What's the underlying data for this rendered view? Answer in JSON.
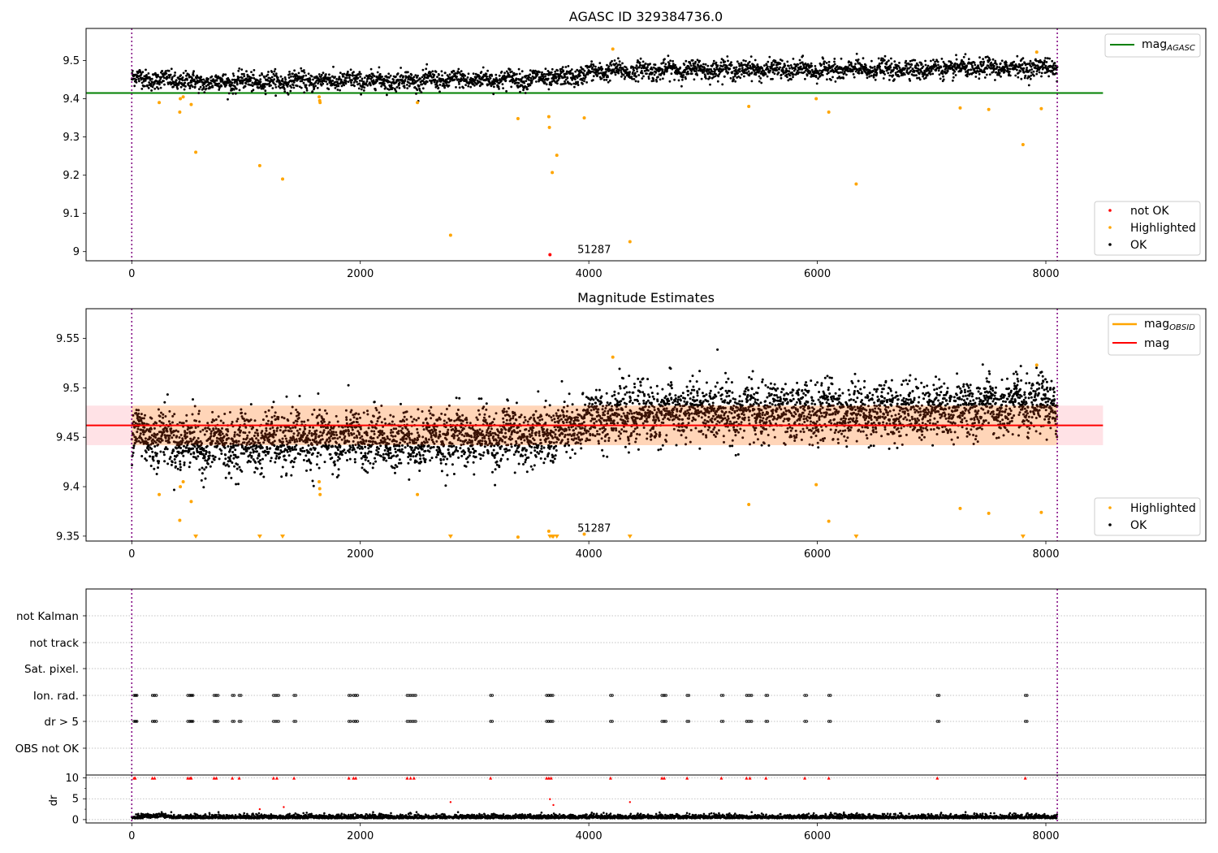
{
  "chart_data": [
    {
      "type": "scatter",
      "title": "AGASC ID 329384736.0",
      "xlim": [
        -400,
        9400
      ],
      "ylim": [
        8.976,
        9.584
      ],
      "xticks": [
        0,
        2000,
        4000,
        6000,
        8000
      ],
      "yticks": [
        9.0,
        9.1,
        9.2,
        9.3,
        9.4,
        9.5
      ],
      "ytick_labels": [
        "9.0",
        "9.1",
        "9.2",
        "9.3",
        "9.4",
        "9.5"
      ],
      "vlines": [
        0,
        8100
      ],
      "hline": {
        "name": "mag_AGASC",
        "value": 9.415,
        "x_range": [
          -400,
          8500
        ],
        "color": "#008000"
      },
      "ok_series": {
        "name": "OK",
        "color": "#000000",
        "x_range": [
          0,
          8100
        ],
        "mean_trend": [
          [
            0,
            9.455
          ],
          [
            600,
            9.443
          ],
          [
            1500,
            9.447
          ],
          [
            2500,
            9.448
          ],
          [
            3500,
            9.452
          ],
          [
            3800,
            9.455
          ],
          [
            4100,
            9.472
          ],
          [
            5000,
            9.477
          ],
          [
            6000,
            9.475
          ],
          [
            7000,
            9.478
          ],
          [
            8100,
            9.482
          ]
        ],
        "scatter_sd": 0.012
      },
      "highlighted": {
        "name": "Highlighted",
        "color": "#ffa500",
        "points": [
          [
            240,
            9.39
          ],
          [
            420,
            9.365
          ],
          [
            425,
            9.4
          ],
          [
            450,
            9.405
          ],
          [
            520,
            9.385
          ],
          [
            560,
            9.26
          ],
          [
            1120,
            9.225
          ],
          [
            1320,
            9.19
          ],
          [
            1640,
            9.405
          ],
          [
            1645,
            9.395
          ],
          [
            1648,
            9.39
          ],
          [
            2500,
            9.39
          ],
          [
            2790,
            9.043
          ],
          [
            3380,
            9.348
          ],
          [
            3650,
            9.353
          ],
          [
            3655,
            9.325
          ],
          [
            3680,
            9.207
          ],
          [
            3720,
            9.252
          ],
          [
            3960,
            9.35
          ],
          [
            4210,
            9.53
          ],
          [
            4360,
            9.026
          ],
          [
            5400,
            9.38
          ],
          [
            5990,
            9.4
          ],
          [
            6100,
            9.365
          ],
          [
            6340,
            9.177
          ],
          [
            7250,
            9.376
          ],
          [
            7500,
            9.372
          ],
          [
            7800,
            9.28
          ],
          [
            7920,
            9.522
          ],
          [
            7960,
            9.374
          ]
        ]
      },
      "not_ok": {
        "name": "not OK",
        "color": "#ff0000",
        "points": [
          [
            3660,
            8.992
          ]
        ]
      },
      "annotation": {
        "text": "51287",
        "x": 3900,
        "y": 9.0
      },
      "legend_top": [
        "mag_AGASC"
      ],
      "legend_bottom": [
        "not OK",
        "Highlighted",
        "OK"
      ],
      "legend_top_loc": "upper right",
      "legend_bottom_loc": "lower right"
    },
    {
      "type": "scatter",
      "title": "Magnitude Estimates",
      "xlim": [
        -400,
        9400
      ],
      "ylim": [
        9.345,
        9.58
      ],
      "xticks": [
        0,
        2000,
        4000,
        6000,
        8000
      ],
      "yticks": [
        9.35,
        9.4,
        9.45,
        9.5,
        9.55
      ],
      "ytick_labels": [
        "9.35",
        "9.40",
        "9.45",
        "9.50",
        "9.55"
      ],
      "vlines": [
        0,
        8100
      ],
      "mag": {
        "name": "mag",
        "value": 9.462,
        "color": "#ff0000",
        "band": [
          9.442,
          9.482
        ],
        "x_range": [
          -400,
          8500
        ]
      },
      "mag_obsid": {
        "name": "mag_OBSID",
        "color": "#ffa500"
      },
      "ok_series": {
        "name": "OK",
        "color": "#000000",
        "x_range": [
          0,
          8100
        ],
        "mean_trend": [
          [
            0,
            9.455
          ],
          [
            600,
            9.443
          ],
          [
            1500,
            9.447
          ],
          [
            2500,
            9.448
          ],
          [
            3500,
            9.452
          ],
          [
            3800,
            9.455
          ],
          [
            4100,
            9.472
          ],
          [
            5000,
            9.477
          ],
          [
            6000,
            9.475
          ],
          [
            7000,
            9.478
          ],
          [
            8100,
            9.482
          ]
        ],
        "scatter_sd": 0.014
      },
      "highlighted": {
        "name": "Highlighted",
        "color": "#ffa500",
        "points": [
          [
            240,
            9.392
          ],
          [
            420,
            9.366
          ],
          [
            425,
            9.4
          ],
          [
            450,
            9.405
          ],
          [
            520,
            9.385
          ],
          [
            1640,
            9.405
          ],
          [
            1645,
            9.398
          ],
          [
            1648,
            9.392
          ],
          [
            2500,
            9.392
          ],
          [
            3380,
            9.349
          ],
          [
            3650,
            9.355
          ],
          [
            3960,
            9.352
          ],
          [
            4210,
            9.531
          ],
          [
            5400,
            9.382
          ],
          [
            5990,
            9.402
          ],
          [
            6100,
            9.365
          ],
          [
            7250,
            9.378
          ],
          [
            7500,
            9.373
          ],
          [
            7920,
            9.523
          ],
          [
            7960,
            9.374
          ]
        ]
      },
      "clipped_low": {
        "color": "#ffa500",
        "x": [
          560,
          1120,
          1320,
          2790,
          3660,
          3680,
          3690,
          3720,
          4360,
          6340,
          7800
        ]
      },
      "annotation": {
        "text": "51287",
        "x": 3900,
        "y": 9.356
      },
      "legend_top": [
        "mag_OBSID",
        "mag"
      ],
      "legend_bottom": [
        "Highlighted",
        "OK"
      ],
      "legend_top_loc": "upper right",
      "legend_bottom_loc": "lower right"
    },
    {
      "type": "scatter",
      "title": "",
      "xlim": [
        -400,
        9400
      ],
      "xticks": [
        0,
        2000,
        4000,
        6000,
        8000
      ],
      "vlines": [
        0,
        8100
      ],
      "categories": [
        "not Kalman",
        "not track",
        "Sat. pixel.",
        "Ion. rad.",
        "dr > 5",
        "OBS not OK"
      ],
      "flag_x": [
        20,
        30,
        180,
        200,
        490,
        510,
        520,
        720,
        740,
        880,
        940,
        1240,
        1270,
        1420,
        1900,
        1940,
        1960,
        2410,
        2440,
        2470,
        3140,
        3630,
        3650,
        3670,
        4190,
        4640,
        4660,
        4860,
        5160,
        5380,
        5410,
        5550,
        5890,
        6100,
        7050,
        7820
      ],
      "flagged_categories": [
        "Ion. rad.",
        "dr > 5"
      ],
      "dr": {
        "ylabel": "dr",
        "yticks": [
          0,
          5,
          10
        ],
        "ylim": [
          -0.8,
          10.7
        ],
        "clip_value": 10,
        "clip_color": "#ff0000",
        "outliers": [
          [
            1330,
            3.0
          ],
          [
            2790,
            4.2
          ],
          [
            3660,
            4.9
          ],
          [
            3690,
            3.5
          ],
          [
            4360,
            4.2
          ],
          [
            1120,
            2.5
          ]
        ],
        "baseline_range": [
          0,
          1.8
        ]
      }
    }
  ]
}
